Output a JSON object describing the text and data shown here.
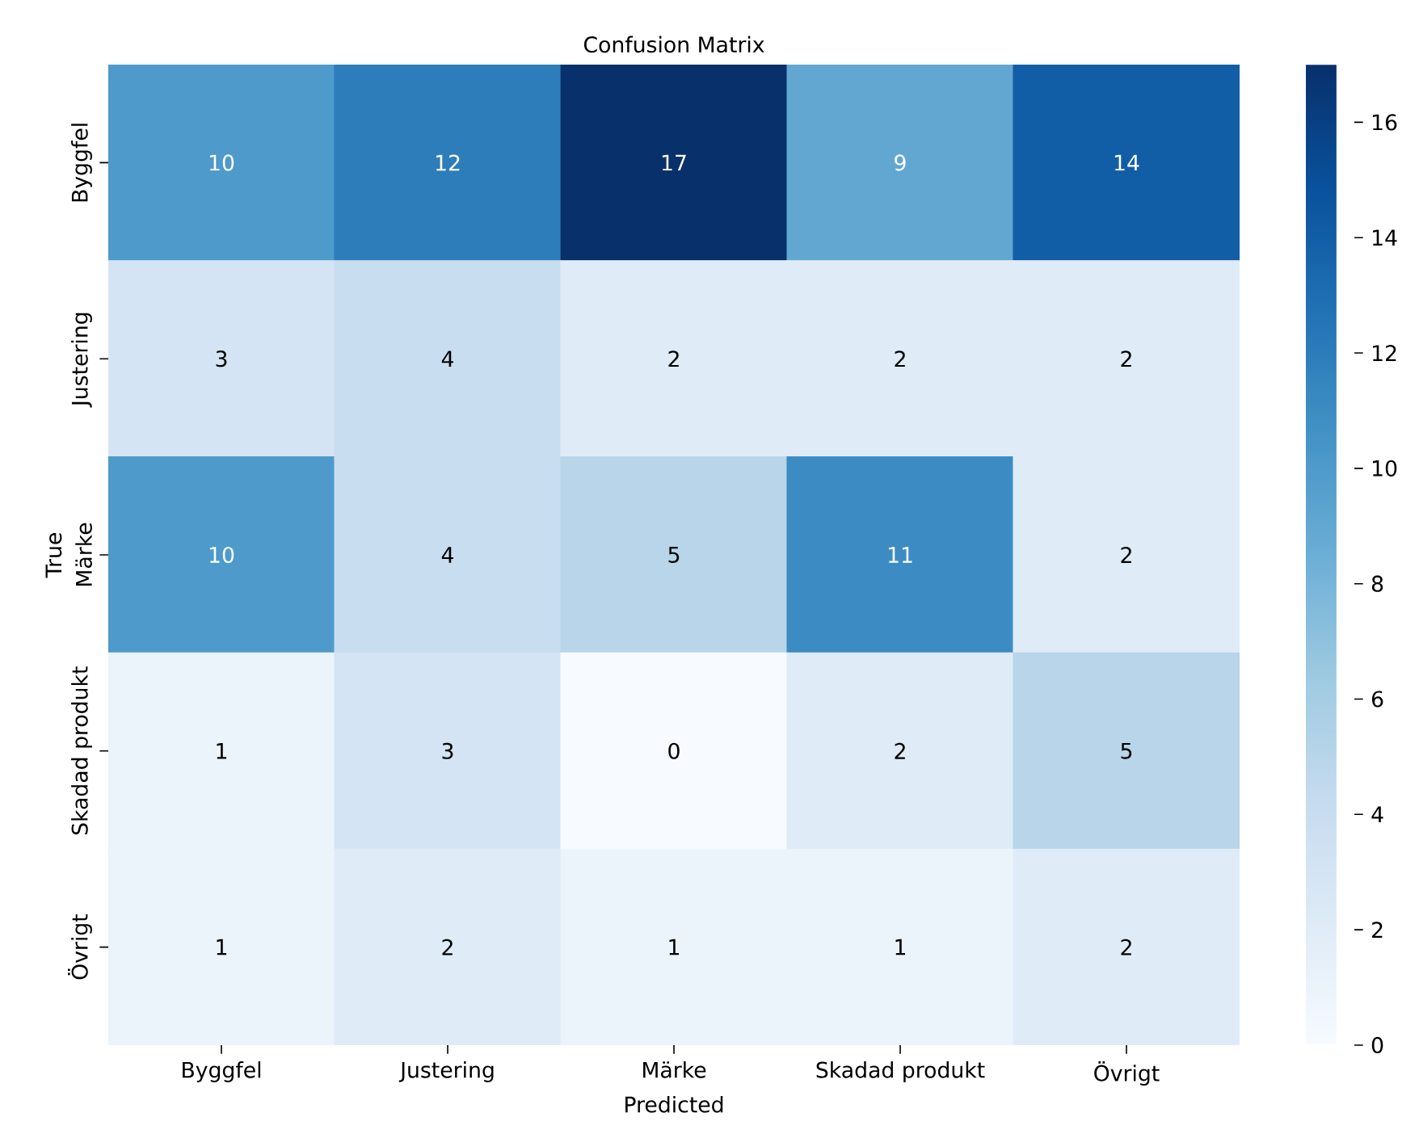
{
  "chart_data": {
    "type": "heatmap",
    "title": "Confusion Matrix",
    "xlabel": "Predicted",
    "ylabel": "True",
    "categories": [
      "Byggfel",
      "Justering",
      "Märke",
      "Skadad produkt",
      "Övrigt"
    ],
    "y_categories": [
      "Byggfel",
      "Justering",
      "Märke",
      "Skadad produkt",
      "Övrigt"
    ],
    "cells": [
      [
        10,
        12,
        17,
        9,
        14
      ],
      [
        3,
        4,
        2,
        2,
        2
      ],
      [
        10,
        4,
        5,
        11,
        2
      ],
      [
        1,
        3,
        0,
        2,
        5
      ],
      [
        1,
        2,
        1,
        1,
        2
      ]
    ],
    "clim": [
      0,
      17
    ],
    "cticks": [
      0,
      2,
      4,
      6,
      8,
      10,
      12,
      14,
      16
    ],
    "data_labels": true
  }
}
